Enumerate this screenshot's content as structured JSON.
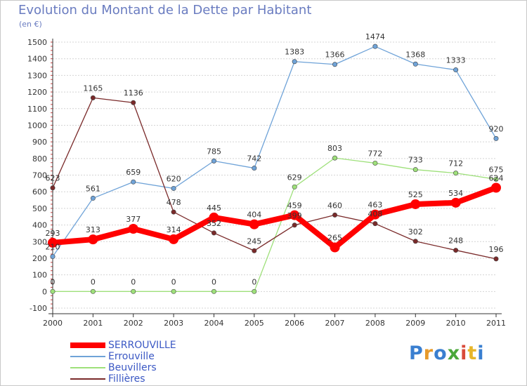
{
  "chart_data": {
    "type": "line",
    "title": "Evolution du Montant de la Dette par Habitant",
    "subtitle": "(en €)",
    "xlabel": "",
    "ylabel": "",
    "categories": [
      "2000",
      "2001",
      "2002",
      "2003",
      "2004",
      "2005",
      "2006",
      "2007",
      "2008",
      "2009",
      "2010",
      "2011"
    ],
    "ylim": [
      -100,
      1500
    ],
    "yticks": [
      -100,
      0,
      100,
      200,
      300,
      400,
      500,
      600,
      700,
      800,
      900,
      1000,
      1100,
      1200,
      1300,
      1400,
      1500
    ],
    "grid": "horizontal",
    "legend_position": "bottom-left",
    "series": [
      {
        "name": "SERROUVILLE",
        "color": "#ff0000",
        "values": [
          293,
          313,
          377,
          314,
          445,
          404,
          459,
          265,
          463,
          525,
          534,
          624
        ],
        "labels": [
          "293",
          "313",
          "377",
          "314",
          "445",
          "404",
          "459",
          "265",
          "463",
          "525",
          "534",
          "624"
        ]
      },
      {
        "name": "Errouville",
        "color": "#6fa3d8",
        "values": [
          210,
          561,
          659,
          620,
          785,
          742,
          1383,
          1366,
          1474,
          1368,
          1333,
          920
        ],
        "labels": [
          "210",
          "561",
          "659",
          "620",
          "785",
          "742",
          "1383",
          "1366",
          "1474",
          "1368",
          "1333",
          "920"
        ]
      },
      {
        "name": "Beuvillers",
        "color": "#9ee07a",
        "values": [
          0,
          0,
          0,
          0,
          0,
          0,
          629,
          803,
          772,
          733,
          712,
          675
        ],
        "labels": [
          "0",
          "0",
          "0",
          "0",
          "0",
          "0",
          "629",
          "803",
          "772",
          "733",
          "712",
          "675"
        ]
      },
      {
        "name": "Fillières",
        "color": "#7a2a2a",
        "values": [
          623,
          1165,
          1136,
          478,
          352,
          245,
          399,
          460,
          408,
          302,
          248,
          196
        ],
        "labels": [
          "623",
          "1165",
          "1136",
          "478",
          "352",
          "245",
          "399",
          "460",
          "408",
          "302",
          "248",
          "196"
        ]
      }
    ]
  },
  "logo": {
    "text": "Proxiti",
    "colors": [
      "#3a7fd0",
      "#e79a2a",
      "#3a7fd0",
      "#4aa83a",
      "#d94a3a",
      "#e7b62a",
      "#3a7fd0"
    ]
  }
}
